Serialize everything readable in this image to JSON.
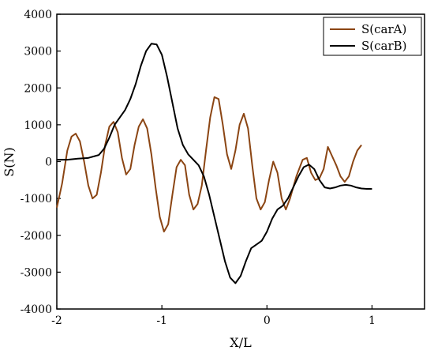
{
  "chart_data": {
    "type": "line",
    "title": "",
    "xlabel": "X/L",
    "ylabel": "S(N)",
    "xlim": [
      -2,
      1.5
    ],
    "ylim": [
      -4000,
      4000
    ],
    "x_ticks": [
      -2,
      -1,
      0,
      1
    ],
    "x_tick_labels": [
      "-2",
      "-1",
      "0",
      "1"
    ],
    "y_ticks": [
      -4000,
      -3000,
      -2000,
      -1000,
      0,
      1000,
      2000,
      3000,
      4000
    ],
    "y_tick_labels": [
      "-4000",
      "-3000",
      "-2000",
      "-1000",
      "0",
      "1000",
      "2000",
      "3000",
      "4000"
    ],
    "grid": false,
    "legend_position": "top-right",
    "series": [
      {
        "name": "S(carA)",
        "color": "#8B4513",
        "points": [
          [
            -2.0,
            -1250
          ],
          [
            -1.95,
            -600
          ],
          [
            -1.9,
            300
          ],
          [
            -1.86,
            680
          ],
          [
            -1.82,
            760
          ],
          [
            -1.78,
            550
          ],
          [
            -1.74,
            0
          ],
          [
            -1.7,
            -650
          ],
          [
            -1.66,
            -1000
          ],
          [
            -1.62,
            -900
          ],
          [
            -1.58,
            -300
          ],
          [
            -1.54,
            450
          ],
          [
            -1.5,
            950
          ],
          [
            -1.46,
            1080
          ],
          [
            -1.42,
            800
          ],
          [
            -1.38,
            100
          ],
          [
            -1.34,
            -350
          ],
          [
            -1.3,
            -200
          ],
          [
            -1.26,
            450
          ],
          [
            -1.22,
            950
          ],
          [
            -1.18,
            1150
          ],
          [
            -1.14,
            900
          ],
          [
            -1.1,
            200
          ],
          [
            -1.06,
            -700
          ],
          [
            -1.02,
            -1500
          ],
          [
            -0.98,
            -1900
          ],
          [
            -0.94,
            -1700
          ],
          [
            -0.9,
            -900
          ],
          [
            -0.86,
            -150
          ],
          [
            -0.82,
            50
          ],
          [
            -0.78,
            -100
          ],
          [
            -0.74,
            -900
          ],
          [
            -0.7,
            -1300
          ],
          [
            -0.66,
            -1150
          ],
          [
            -0.62,
            -650
          ],
          [
            -0.58,
            300
          ],
          [
            -0.54,
            1200
          ],
          [
            -0.5,
            1750
          ],
          [
            -0.46,
            1700
          ],
          [
            -0.42,
            1000
          ],
          [
            -0.38,
            200
          ],
          [
            -0.34,
            -200
          ],
          [
            -0.3,
            300
          ],
          [
            -0.26,
            1000
          ],
          [
            -0.22,
            1300
          ],
          [
            -0.18,
            900
          ],
          [
            -0.14,
            -100
          ],
          [
            -0.1,
            -1000
          ],
          [
            -0.06,
            -1300
          ],
          [
            -0.02,
            -1100
          ],
          [
            0.02,
            -500
          ],
          [
            0.06,
            0
          ],
          [
            0.1,
            -300
          ],
          [
            0.14,
            -1000
          ],
          [
            0.18,
            -1300
          ],
          [
            0.22,
            -1000
          ],
          [
            0.28,
            -400
          ],
          [
            0.34,
            50
          ],
          [
            0.38,
            100
          ],
          [
            0.42,
            -300
          ],
          [
            0.46,
            -500
          ],
          [
            0.5,
            -450
          ],
          [
            0.54,
            -200
          ],
          [
            0.58,
            400
          ],
          [
            0.62,
            150
          ],
          [
            0.66,
            -100
          ],
          [
            0.7,
            -400
          ],
          [
            0.74,
            -550
          ],
          [
            0.78,
            -400
          ],
          [
            0.82,
            0
          ],
          [
            0.86,
            300
          ],
          [
            0.9,
            450
          ]
        ]
      },
      {
        "name": "S(carB)",
        "color": "#000000",
        "points": [
          [
            -2.0,
            50
          ],
          [
            -1.9,
            50
          ],
          [
            -1.8,
            80
          ],
          [
            -1.7,
            100
          ],
          [
            -1.6,
            180
          ],
          [
            -1.55,
            350
          ],
          [
            -1.5,
            650
          ],
          [
            -1.45,
            1000
          ],
          [
            -1.4,
            1200
          ],
          [
            -1.35,
            1400
          ],
          [
            -1.3,
            1700
          ],
          [
            -1.25,
            2100
          ],
          [
            -1.2,
            2600
          ],
          [
            -1.15,
            3000
          ],
          [
            -1.1,
            3200
          ],
          [
            -1.05,
            3180
          ],
          [
            -1.0,
            2900
          ],
          [
            -0.95,
            2300
          ],
          [
            -0.9,
            1600
          ],
          [
            -0.85,
            900
          ],
          [
            -0.8,
            450
          ],
          [
            -0.75,
            200
          ],
          [
            -0.7,
            50
          ],
          [
            -0.65,
            -100
          ],
          [
            -0.6,
            -400
          ],
          [
            -0.55,
            -900
          ],
          [
            -0.5,
            -1500
          ],
          [
            -0.45,
            -2100
          ],
          [
            -0.4,
            -2700
          ],
          [
            -0.35,
            -3150
          ],
          [
            -0.3,
            -3300
          ],
          [
            -0.25,
            -3100
          ],
          [
            -0.2,
            -2700
          ],
          [
            -0.15,
            -2350
          ],
          [
            -0.1,
            -2250
          ],
          [
            -0.05,
            -2150
          ],
          [
            0.0,
            -1900
          ],
          [
            0.05,
            -1550
          ],
          [
            0.1,
            -1300
          ],
          [
            0.15,
            -1200
          ],
          [
            0.2,
            -1000
          ],
          [
            0.25,
            -700
          ],
          [
            0.3,
            -400
          ],
          [
            0.35,
            -150
          ],
          [
            0.4,
            -80
          ],
          [
            0.45,
            -200
          ],
          [
            0.5,
            -500
          ],
          [
            0.55,
            -700
          ],
          [
            0.6,
            -730
          ],
          [
            0.65,
            -700
          ],
          [
            0.7,
            -650
          ],
          [
            0.75,
            -630
          ],
          [
            0.8,
            -650
          ],
          [
            0.85,
            -700
          ],
          [
            0.9,
            -730
          ],
          [
            0.95,
            -740
          ],
          [
            1.0,
            -740
          ]
        ]
      }
    ]
  }
}
